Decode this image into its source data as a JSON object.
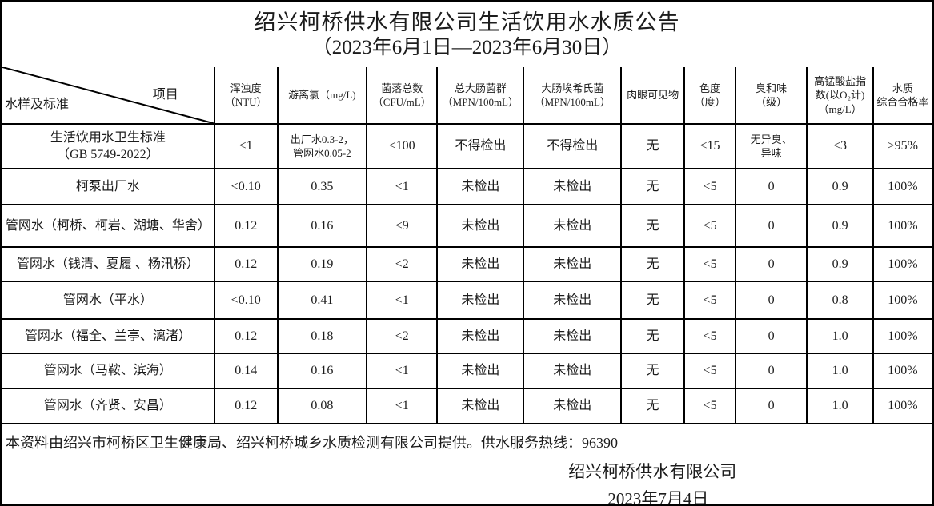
{
  "title": "绍兴柯桥供水有限公司生活饮用水水质公告",
  "subtitle": "（2023年6月1日—2023年6月30日）",
  "colors": {
    "border": "#000000",
    "background": "#ffffff",
    "text": "#1c1c1c"
  },
  "table": {
    "corner": {
      "bottom_left": "水样及标准",
      "top_right": "项目"
    },
    "columns": [
      "浑浊度\n（NTU）",
      "游离氯（mg/L)",
      "菌落总数\n（CFU/mL）",
      "总大肠菌群\n（MPN/100mL）",
      "大肠埃希氏菌\n（MPN/100mL）",
      "肉眼可见物",
      "色度\n（度）",
      "臭和味\n（级）",
      "高锰酸盐指\n数(以O₂计)\n（mg/L）",
      "水质\n综合合格率"
    ],
    "rows": [
      {
        "name": "生活饮用水卫生标准\n（GB 5749-2022）",
        "values": [
          "≤1",
          "出厂水0.3-2，\n管网水0.05-2",
          "≤100",
          "不得检出",
          "不得检出",
          "无",
          "≤15",
          "无异臭、\n异味",
          "≤3",
          "≥95%"
        ]
      },
      {
        "name": "柯泵出厂水",
        "values": [
          "<0.10",
          "0.35",
          "<1",
          "未检出",
          "未检出",
          "无",
          "<5",
          "0",
          "0.9",
          "100%"
        ]
      },
      {
        "name": "管网水（柯桥、柯岩、湖塘、华舍）",
        "values": [
          "0.12",
          "0.16",
          "<9",
          "未检出",
          "未检出",
          "无",
          "<5",
          "0",
          "0.9",
          "100%"
        ]
      },
      {
        "name": "管网水（钱清、夏履 、杨汛桥）",
        "values": [
          "0.12",
          "0.19",
          "<2",
          "未检出",
          "未检出",
          "无",
          "<5",
          "0",
          "0.9",
          "100%"
        ]
      },
      {
        "name": "管网水（平水）",
        "values": [
          "<0.10",
          "0.41",
          "<1",
          "未检出",
          "未检出",
          "无",
          "<5",
          "0",
          "0.8",
          "100%"
        ]
      },
      {
        "name": "管网水（福全、兰亭、漓渚）",
        "values": [
          "0.12",
          "0.18",
          "<2",
          "未检出",
          "未检出",
          "无",
          "<5",
          "0",
          "1.0",
          "100%"
        ]
      },
      {
        "name": "管网水（马鞍、滨海）",
        "values": [
          "0.14",
          "0.16",
          "<1",
          "未检出",
          "未检出",
          "无",
          "<5",
          "0",
          "1.0",
          "100%"
        ]
      },
      {
        "name": "管网水（齐贤、安昌）",
        "values": [
          "0.12",
          "0.08",
          "<1",
          "未检出",
          "未检出",
          "无",
          "<5",
          "0",
          "1.0",
          "100%"
        ]
      }
    ]
  },
  "footer": {
    "note": "本资料由绍兴市柯桥区卫生健康局、绍兴柯桥城乡水质检测有限公司提供。供水服务热线：96390",
    "company": "绍兴柯桥供水有限公司",
    "date": "2023年7月4日"
  }
}
